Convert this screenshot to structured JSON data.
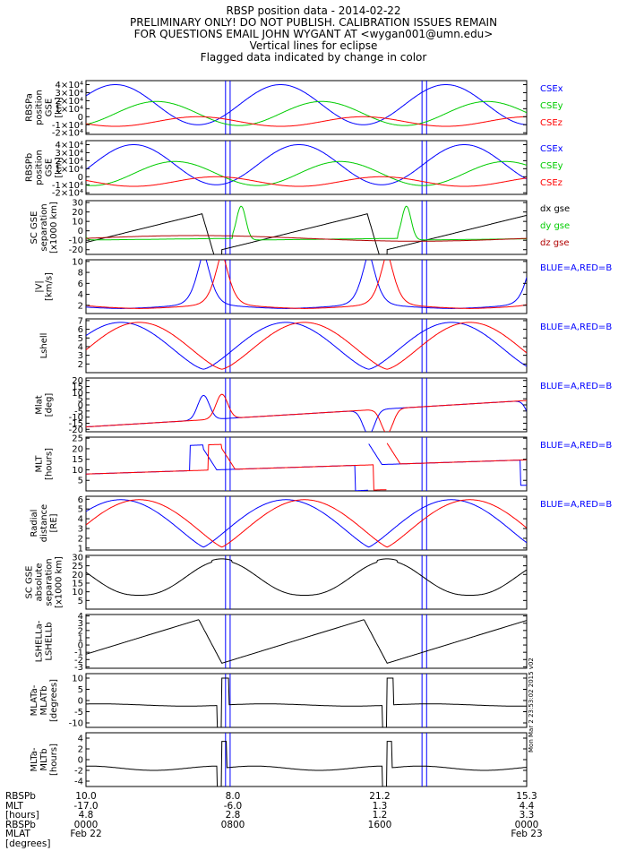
{
  "header": {
    "lines": [
      "RBSP position data - 2014-02-22",
      "PRELIMINARY ONLY! DO NOT PUBLISH. CALIBRATION ISSUES REMAIN",
      "FOR QUESTIONS EMAIL JOHN WYGANT AT <wygan001@umn.edu>",
      "Vertical lines for eclipse",
      "Flagged data indicated by change in color"
    ]
  },
  "side_stamp": "Mon Mar  2 23:53:02 2015 v02",
  "colors": {
    "blue": "#0000ff",
    "red": "#ff0000",
    "green": "#00cc00",
    "darkred": "#b00000",
    "black": "#000000",
    "eclipse": "#0000ff"
  },
  "chart_data": {
    "type": "line",
    "x_unit": "hours",
    "x_range": [
      0,
      24
    ],
    "eclipse_times": [
      7.6,
      7.85,
      18.3,
      18.55
    ],
    "panels": [
      {
        "ylabel": [
          "RBSPa",
          "position",
          "GSE",
          "[km]"
        ],
        "ylim": [
          -22000,
          45000
        ],
        "ticks": [
          {
            "v": 40000,
            "t": "4×10⁴"
          },
          {
            "v": 30000,
            "t": "3×10⁴"
          },
          {
            "v": 20000,
            "t": "2×10⁴"
          },
          {
            "v": 10000,
            "t": "1×10⁴"
          },
          {
            "v": 0,
            "t": "0"
          },
          {
            "v": -10000,
            "t": "-1×10⁴"
          },
          {
            "v": -20000,
            "t": "-2×10⁴"
          }
        ],
        "legend": [
          {
            "t": "CSEx",
            "c": "blue"
          },
          {
            "t": "CSEy",
            "c": "green"
          },
          {
            "t": "CSEz",
            "c": "red"
          }
        ],
        "series": [
          {
            "name": "CSEx",
            "color": "blue",
            "func": "gsex",
            "shift": 1.0
          },
          {
            "name": "CSEy",
            "color": "green",
            "func": "gsey",
            "shift": 1.0
          },
          {
            "name": "CSEz",
            "color": "red",
            "func": "gsez",
            "shift": 1.0
          }
        ]
      },
      {
        "ylabel": [
          "RBSPb",
          "position",
          "GSE",
          "[km]"
        ],
        "ylim": [
          -22000,
          45000
        ],
        "ticks": [
          {
            "v": 40000,
            "t": "4×10⁴"
          },
          {
            "v": 30000,
            "t": "3×10⁴"
          },
          {
            "v": 20000,
            "t": "2×10⁴"
          },
          {
            "v": 10000,
            "t": "1×10⁴"
          },
          {
            "v": 0,
            "t": "0"
          },
          {
            "v": -10000,
            "t": "-1×10⁴"
          },
          {
            "v": -20000,
            "t": "-2×10⁴"
          }
        ],
        "legend": [
          {
            "t": "CSEx",
            "c": "blue"
          },
          {
            "t": "CSEy",
            "c": "green"
          },
          {
            "t": "CSEz",
            "c": "red"
          }
        ],
        "series": [
          {
            "name": "CSEx",
            "color": "blue",
            "func": "gsex",
            "shift": 0.0
          },
          {
            "name": "CSEy",
            "color": "green",
            "func": "gsey",
            "shift": 0.0
          },
          {
            "name": "CSEz",
            "color": "red",
            "func": "gsez",
            "shift": 0.0
          }
        ]
      },
      {
        "ylabel": [
          "SC GSE",
          "separation",
          "[x1000 km]"
        ],
        "ylim": [
          -25,
          32
        ],
        "ticks": [
          {
            "v": 30,
            "t": "30"
          },
          {
            "v": 20,
            "t": "20"
          },
          {
            "v": 10,
            "t": "10"
          },
          {
            "v": 0,
            "t": "0"
          },
          {
            "v": -10,
            "t": "-10"
          },
          {
            "v": -20,
            "t": "-20"
          }
        ],
        "legend": [
          {
            "t": "dx gse",
            "c": "black"
          },
          {
            "t": "dy gse",
            "c": "green"
          },
          {
            "t": "dz gse",
            "c": "darkred"
          }
        ],
        "series": [
          {
            "name": "dx gse",
            "color": "black",
            "func": "sepx"
          },
          {
            "name": "dy gse",
            "color": "green",
            "func": "sepy"
          },
          {
            "name": "dz gse",
            "color": "darkred",
            "func": "sepz"
          }
        ]
      },
      {
        "ylabel": [
          "|V|",
          "[km/s]"
        ],
        "ylim": [
          0.5,
          10.3
        ],
        "ticks": [
          {
            "v": 10,
            "t": "10"
          },
          {
            "v": 8,
            "t": "8"
          },
          {
            "v": 6,
            "t": "6"
          },
          {
            "v": 4,
            "t": "4"
          },
          {
            "v": 2,
            "t": "2"
          }
        ],
        "legend": [
          {
            "t": "BLUE=A,RED=B",
            "c": "blue"
          }
        ],
        "series": [
          {
            "color": "blue",
            "func": "vel",
            "shift": 1.0
          },
          {
            "color": "red",
            "func": "vel",
            "shift": 0.0
          }
        ]
      },
      {
        "ylabel": [
          "Lshell"
        ],
        "ylim": [
          1.0,
          7.2
        ],
        "ticks": [
          {
            "v": 7,
            "t": "7"
          },
          {
            "v": 6,
            "t": "6"
          },
          {
            "v": 5,
            "t": "5"
          },
          {
            "v": 4,
            "t": "4"
          },
          {
            "v": 3,
            "t": "3"
          },
          {
            "v": 2,
            "t": "2"
          }
        ],
        "legend": [
          {
            "t": "BLUE=A,RED=B",
            "c": "blue"
          }
        ],
        "series": [
          {
            "color": "blue",
            "func": "lshell",
            "shift": 1.0
          },
          {
            "color": "red",
            "func": "lshell",
            "shift": 0.0
          }
        ]
      },
      {
        "ylabel": [
          "Mlat",
          "[deg]"
        ],
        "ylim": [
          -22,
          22
        ],
        "ticks": [
          {
            "v": 20,
            "t": "20"
          },
          {
            "v": 15,
            "t": "15"
          },
          {
            "v": 10,
            "t": "10"
          },
          {
            "v": 5,
            "t": "5"
          },
          {
            "v": 0,
            "t": "0"
          },
          {
            "v": -5,
            "t": "-5"
          },
          {
            "v": -10,
            "t": "-10"
          },
          {
            "v": -15,
            "t": "-15"
          },
          {
            "v": -20,
            "t": "-20"
          }
        ],
        "legend": [
          {
            "t": "BLUE=A,RED=B",
            "c": "blue"
          }
        ],
        "series": [
          {
            "color": "blue",
            "func": "mlat",
            "shift": 1.0
          },
          {
            "color": "red",
            "func": "mlat",
            "shift": 0.0
          }
        ]
      },
      {
        "ylabel": [
          "MLT",
          "[hours]"
        ],
        "ylim": [
          0,
          25.5
        ],
        "ticks": [
          {
            "v": 25,
            "t": "25"
          },
          {
            "v": 20,
            "t": "20"
          },
          {
            "v": 15,
            "t": "15"
          },
          {
            "v": 10,
            "t": "10"
          },
          {
            "v": 5,
            "t": "5"
          }
        ],
        "legend": [
          {
            "t": "BLUE=A,RED=B",
            "c": "blue"
          }
        ],
        "series": [
          {
            "color": "blue",
            "func": "mlt",
            "shift": 1.0
          },
          {
            "color": "red",
            "func": "mlt",
            "shift": 0.0
          }
        ]
      },
      {
        "ylabel": [
          "Radial",
          "distance",
          "[RE]"
        ],
        "ylim": [
          0.8,
          6.3
        ],
        "ticks": [
          {
            "v": 6,
            "t": "6"
          },
          {
            "v": 5,
            "t": "5"
          },
          {
            "v": 4,
            "t": "4"
          },
          {
            "v": 3,
            "t": "3"
          },
          {
            "v": 2,
            "t": "2"
          },
          {
            "v": 1,
            "t": "1"
          }
        ],
        "legend": [
          {
            "t": "BLUE=A,RED=B",
            "c": "blue"
          }
        ],
        "series": [
          {
            "color": "blue",
            "func": "rad",
            "shift": 1.0
          },
          {
            "color": "red",
            "func": "rad",
            "shift": 0.0
          }
        ]
      },
      {
        "ylabel": [
          "SC GSE",
          "absolute",
          "separation",
          "[x1000 km]"
        ],
        "ylim": [
          0,
          31
        ],
        "ticks": [
          {
            "v": 30,
            "t": "30"
          },
          {
            "v": 25,
            "t": "25"
          },
          {
            "v": 20,
            "t": "20"
          },
          {
            "v": 15,
            "t": "15"
          },
          {
            "v": 10,
            "t": "10"
          },
          {
            "v": 5,
            "t": "5"
          }
        ],
        "legend": [],
        "series": [
          {
            "color": "black",
            "func": "abssep"
          }
        ]
      },
      {
        "ylabel": [
          "LSHELLa-",
          "LSHELLb"
        ],
        "ylim": [
          -3.2,
          4.2
        ],
        "ticks": [
          {
            "v": 4,
            "t": "4"
          },
          {
            "v": 3,
            "t": "3"
          },
          {
            "v": 2,
            "t": "2"
          },
          {
            "v": 1,
            "t": "1"
          },
          {
            "v": 0,
            "t": "0"
          },
          {
            "v": -1,
            "t": "-1"
          },
          {
            "v": -2,
            "t": "-2"
          },
          {
            "v": -3,
            "t": "-3"
          }
        ],
        "legend": [],
        "series": [
          {
            "color": "black",
            "func": "dl"
          }
        ]
      },
      {
        "ylabel": [
          "MLATa-",
          "MLATb",
          "[degrees]"
        ],
        "ylim": [
          -12,
          12
        ],
        "ticks": [
          {
            "v": 10,
            "t": "10"
          },
          {
            "v": 5,
            "t": "5"
          },
          {
            "v": 0,
            "t": "0"
          },
          {
            "v": -5,
            "t": "-5"
          },
          {
            "v": -10,
            "t": "-10"
          }
        ],
        "legend": [],
        "series": [
          {
            "color": "black",
            "func": "dmlat"
          }
        ]
      },
      {
        "ylabel": [
          "MLTa-",
          "MLTb",
          "[hours]"
        ],
        "ylim": [
          -5,
          5
        ],
        "ticks": [
          {
            "v": 4,
            "t": "4"
          },
          {
            "v": 2,
            "t": "2"
          },
          {
            "v": 0,
            "t": "0"
          },
          {
            "v": -2,
            "t": "-2"
          },
          {
            "v": -4,
            "t": "-4"
          }
        ],
        "legend": [],
        "series": [
          {
            "color": "black",
            "func": "dmlt"
          }
        ]
      }
    ]
  },
  "footer": {
    "labels": [
      "RBSPb",
      "MLT",
      "[hours]",
      "RBSPb",
      "MLAT",
      "[degrees]"
    ],
    "columns": [
      {
        "x": 0,
        "values": [
          "10.0",
          "-17.0",
          "4.8",
          "0000",
          "Feb 22"
        ]
      },
      {
        "x": 8,
        "values": [
          "8.0",
          "-6.0",
          "2.8",
          "0800",
          ""
        ]
      },
      {
        "x": 16,
        "values": [
          "21.2",
          "1.3",
          "1.2",
          "1600",
          ""
        ]
      },
      {
        "x": 24,
        "values": [
          "15.3",
          "4.4",
          "3.3",
          "0000",
          "Feb 23"
        ]
      }
    ]
  }
}
